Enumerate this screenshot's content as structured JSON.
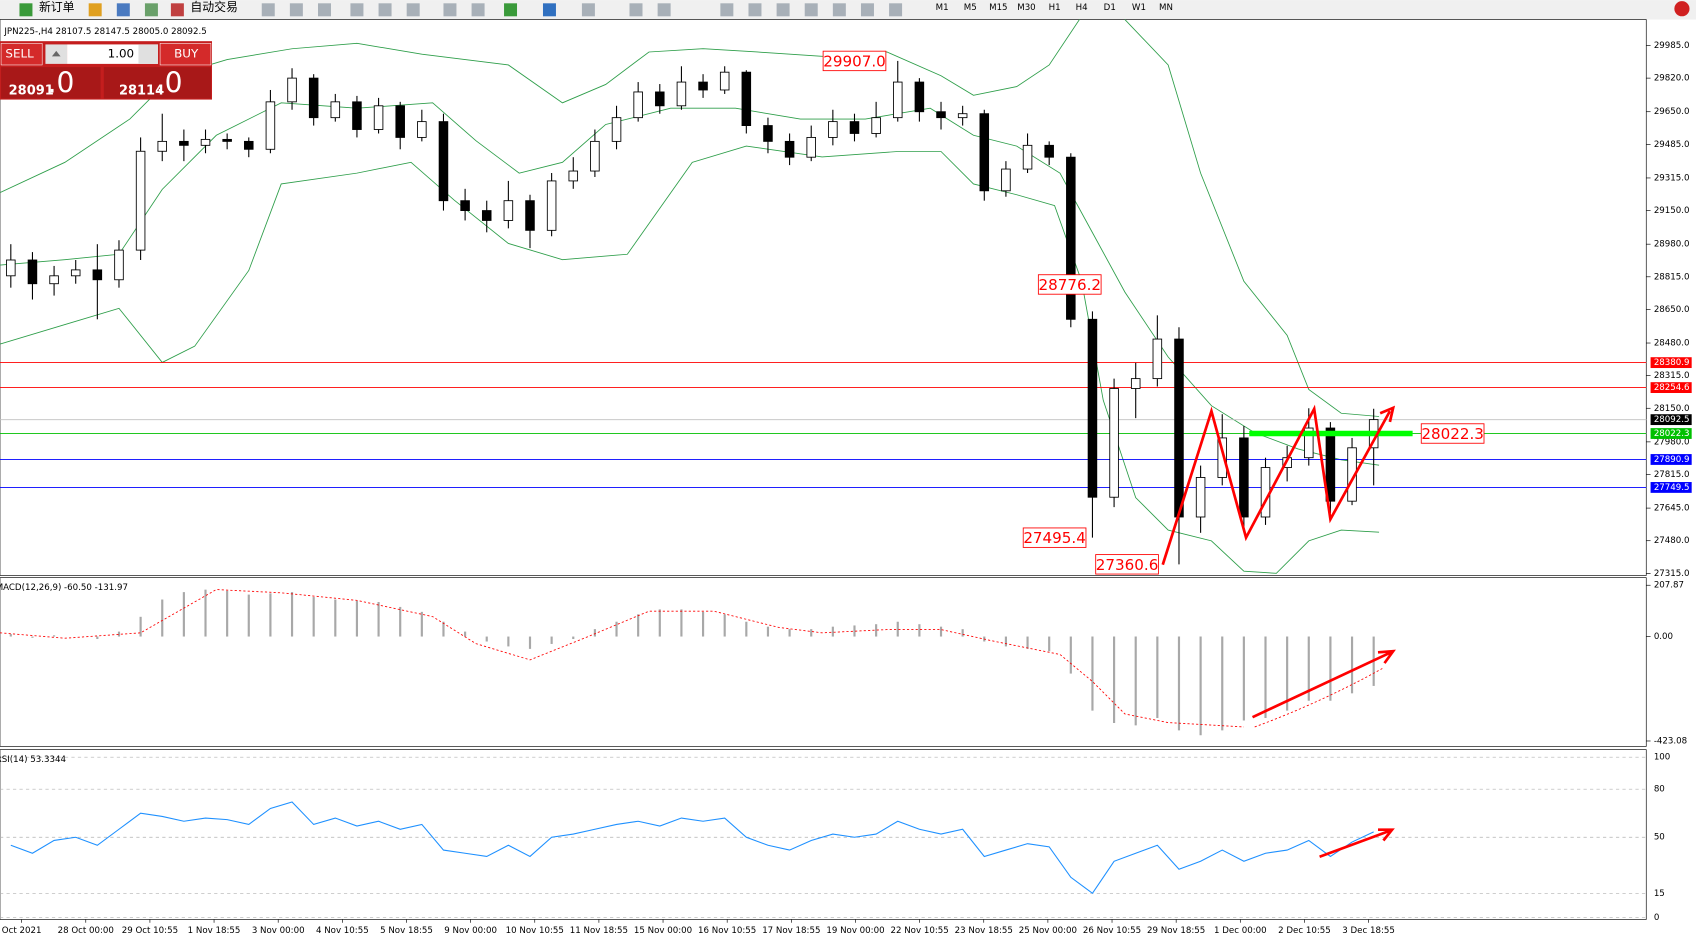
{
  "toolbar": {
    "new_order": "新订单",
    "auto_trading": "自动交易",
    "timeframes": [
      "M1",
      "M5",
      "M15",
      "M30",
      "H1",
      "H4",
      "D1",
      "W1",
      "MN"
    ]
  },
  "order_panel": {
    "sell": "SELL",
    "lots": "1.00",
    "buy": "BUY",
    "sell_price": "28091",
    "sell_frac": ".0",
    "buy_price": "28114",
    "buy_frac": ".0"
  },
  "main_chart": {
    "header": "JPN225-,H4  28107.5 28147.5 28005.0 28092.5",
    "ylim": [
      27315,
      29985
    ],
    "yticks": [
      {
        "value": 29985,
        "label": "29985.0"
      },
      {
        "value": 29820,
        "label": "29820.0"
      },
      {
        "value": 29650,
        "label": "29650.0"
      },
      {
        "value": 29485,
        "label": "29485.0"
      },
      {
        "value": 29315,
        "label": "29315.0"
      },
      {
        "value": 29150,
        "label": "29150.0"
      },
      {
        "value": 28980,
        "label": "28980.0"
      },
      {
        "value": 28815,
        "label": "28815.0"
      },
      {
        "value": 28650,
        "label": "28650.0"
      },
      {
        "value": 28480,
        "label": "28480.0"
      },
      {
        "value": 28315,
        "label": "28315.0"
      },
      {
        "value": 28150,
        "label": "28150.0"
      },
      {
        "value": 27980,
        "label": "27980.0"
      },
      {
        "value": 27815,
        "label": "27815.0"
      },
      {
        "value": 27645,
        "label": "27645.0"
      },
      {
        "value": 27480,
        "label": "27480.0"
      },
      {
        "value": 27315,
        "label": "27315.0"
      }
    ],
    "levels": [
      {
        "value": 28380.9,
        "label": "28380.9",
        "color": "#ff0000"
      },
      {
        "value": 28254.6,
        "label": "28254.6",
        "color": "#ff0000"
      },
      {
        "value": 28092.5,
        "label": "28092.5",
        "color": "#000000"
      },
      {
        "value": 28022.3,
        "label": "28022.3",
        "color": "#00c000"
      },
      {
        "value": 27890.9,
        "label": "27890.9",
        "color": "#0000ff"
      },
      {
        "value": 27749.5,
        "label": "27749.5",
        "color": "#0000ff"
      }
    ],
    "annotations": [
      {
        "value": 29907,
        "label": "29907.0"
      },
      {
        "value": 28776.2,
        "label": "28776.2"
      },
      {
        "value": 27495.4,
        "label": "27495.4"
      },
      {
        "value": 27360.6,
        "label": "27360.6"
      },
      {
        "value": 28022.3,
        "label": "28022.3"
      }
    ],
    "candles": [
      [
        28820,
        28980,
        28760,
        28900
      ],
      [
        28900,
        28940,
        28700,
        28780
      ],
      [
        28780,
        28870,
        28720,
        28820
      ],
      [
        28820,
        28900,
        28780,
        28850
      ],
      [
        28850,
        28980,
        28600,
        28800
      ],
      [
        28800,
        29000,
        28760,
        28950
      ],
      [
        28950,
        29520,
        28900,
        29450
      ],
      [
        29450,
        29640,
        29400,
        29500
      ],
      [
        29500,
        29560,
        29400,
        29480
      ],
      [
        29480,
        29560,
        29440,
        29510
      ],
      [
        29510,
        29540,
        29460,
        29500
      ],
      [
        29500,
        29520,
        29420,
        29460
      ],
      [
        29460,
        29760,
        29440,
        29700
      ],
      [
        29700,
        29870,
        29660,
        29820
      ],
      [
        29820,
        29840,
        29580,
        29620
      ],
      [
        29620,
        29740,
        29600,
        29700
      ],
      [
        29700,
        29730,
        29520,
        29560
      ],
      [
        29560,
        29720,
        29540,
        29680
      ],
      [
        29680,
        29700,
        29460,
        29520
      ],
      [
        29520,
        29660,
        29500,
        29600
      ],
      [
        29600,
        29640,
        29150,
        29200
      ],
      [
        29200,
        29260,
        29100,
        29150
      ],
      [
        29150,
        29200,
        29040,
        29100
      ],
      [
        29100,
        29300,
        29060,
        29200
      ],
      [
        29200,
        29230,
        28960,
        29050
      ],
      [
        29050,
        29340,
        29020,
        29300
      ],
      [
        29300,
        29420,
        29260,
        29350
      ],
      [
        29350,
        29560,
        29320,
        29500
      ],
      [
        29500,
        29680,
        29460,
        29620
      ],
      [
        29620,
        29800,
        29600,
        29750
      ],
      [
        29750,
        29790,
        29640,
        29680
      ],
      [
        29680,
        29880,
        29660,
        29800
      ],
      [
        29800,
        29840,
        29720,
        29760
      ],
      [
        29760,
        29880,
        29740,
        29850
      ],
      [
        29850,
        29860,
        29540,
        29580
      ],
      [
        29580,
        29620,
        29440,
        29500
      ],
      [
        29500,
        29540,
        29380,
        29420
      ],
      [
        29420,
        29580,
        29400,
        29520
      ],
      [
        29520,
        29660,
        29480,
        29600
      ],
      [
        29600,
        29640,
        29500,
        29540
      ],
      [
        29540,
        29700,
        29520,
        29620
      ],
      [
        29620,
        29907,
        29600,
        29800
      ],
      [
        29800,
        29820,
        29600,
        29650
      ],
      [
        29650,
        29700,
        29560,
        29620
      ],
      [
        29620,
        29680,
        29580,
        29640
      ],
      [
        29640,
        29660,
        29200,
        29250
      ],
      [
        29250,
        29400,
        29220,
        29360
      ],
      [
        29360,
        29540,
        29340,
        29480
      ],
      [
        29480,
        29500,
        29380,
        29420
      ],
      [
        29420,
        29440,
        28560,
        28600
      ],
      [
        28600,
        28640,
        27495.4,
        27700
      ],
      [
        27700,
        28300,
        27650,
        28250
      ],
      [
        28250,
        28380,
        28100,
        28300
      ],
      [
        28300,
        28620,
        28260,
        28500
      ],
      [
        28500,
        28560,
        27360.6,
        27600
      ],
      [
        27600,
        27860,
        27520,
        27800
      ],
      [
        27800,
        28120,
        27760,
        28000
      ],
      [
        28000,
        28060,
        27540,
        27600
      ],
      [
        27600,
        27900,
        27560,
        27850
      ],
      [
        27850,
        27960,
        27780,
        27900
      ],
      [
        27900,
        28150,
        27860,
        28050
      ],
      [
        28050,
        28080,
        27620,
        27680
      ],
      [
        27680,
        28000,
        27660,
        27950
      ],
      [
        27950,
        28147.5,
        27760,
        28092.5
      ]
    ]
  },
  "macd": {
    "label": "MACD(12,26,9) -60.50 -131.97",
    "ylim": [
      -423.08,
      207.87
    ],
    "yticks": [
      207.87,
      {
        "value": 0,
        "label": "0.00"
      },
      -423.08
    ],
    "histogram": [
      10,
      -5,
      5,
      0,
      -10,
      20,
      80,
      150,
      180,
      190,
      185,
      170,
      175,
      180,
      160,
      150,
      145,
      140,
      120,
      100,
      60,
      20,
      -20,
      -40,
      -50,
      -30,
      -10,
      30,
      60,
      90,
      110,
      110,
      100,
      90,
      60,
      40,
      30,
      30,
      40,
      45,
      50,
      60,
      50,
      40,
      30,
      -20,
      -40,
      -50,
      -60,
      -150,
      -300,
      -350,
      -360,
      -330,
      -380,
      -400,
      -380,
      -340,
      -330,
      -300,
      -260,
      -260,
      -230,
      -200
    ]
  },
  "rsi": {
    "label": "RSI(14) 53.3344",
    "ylim": [
      0,
      100
    ],
    "yticks": [
      100,
      80,
      50,
      15,
      0
    ],
    "values": [
      45,
      40,
      48,
      50,
      45,
      55,
      65,
      63,
      60,
      62,
      61,
      58,
      68,
      72,
      58,
      62,
      57,
      60,
      55,
      58,
      42,
      40,
      38,
      45,
      38,
      50,
      52,
      55,
      58,
      60,
      57,
      62,
      60,
      62,
      50,
      45,
      42,
      48,
      52,
      50,
      52,
      60,
      55,
      52,
      55,
      38,
      42,
      46,
      44,
      25,
      15,
      35,
      40,
      45,
      30,
      35,
      42,
      35,
      40,
      42,
      48,
      38,
      47,
      53.3344
    ]
  },
  "time_axis": [
    "Oct 2021",
    "28 Oct 00:00",
    "29 Oct 10:55",
    "1 Nov 18:55",
    "3 Nov 00:00",
    "4 Nov 10:55",
    "5 Nov 18:55",
    "9 Nov 00:00",
    "10 Nov 10:55",
    "11 Nov 18:55",
    "15 Nov 00:00",
    "16 Nov 10:55",
    "17 Nov 18:55",
    "19 Nov 00:00",
    "22 Nov 10:55",
    "23 Nov 18:55",
    "25 Nov 00:00",
    "26 Nov 10:55",
    "29 Nov 18:55",
    "1 Dec 00:00",
    "2 Dec 10:55",
    "3 Dec 18:55"
  ]
}
